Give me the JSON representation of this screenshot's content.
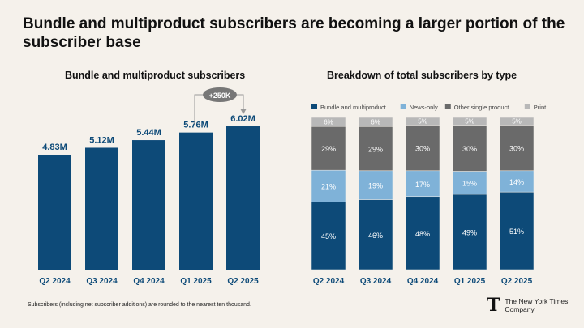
{
  "title": "Bundle and multiproduct subscribers are becoming a larger portion of the subscriber base",
  "footnote": "Subscribers (including net subscriber additions) are rounded to the nearest ten thousand.",
  "logo": {
    "line1": "The New York Times",
    "line2": "Company"
  },
  "chart_data": [
    {
      "type": "bar",
      "title": "Bundle and multiproduct subscribers",
      "categories": [
        "Q2 2024",
        "Q3 2024",
        "Q4 2024",
        "Q1 2025",
        "Q2 2025"
      ],
      "values": [
        4.83,
        5.12,
        5.44,
        5.76,
        6.02
      ],
      "labels": [
        "4.83M",
        "5.12M",
        "5.44M",
        "5.76M",
        "6.02M"
      ],
      "annotation": "+250K",
      "ylim": [
        0,
        6.5
      ],
      "color": "#0d4a78"
    },
    {
      "type": "bar",
      "stacked": true,
      "title": "Breakdown of total subscribers by type",
      "categories": [
        "Q2 2024",
        "Q3 2024",
        "Q4 2024",
        "Q1 2025",
        "Q2 2025"
      ],
      "legend_position": "top",
      "series": [
        {
          "name": "Bundle and multiproduct",
          "values": [
            45,
            46,
            48,
            49,
            51
          ],
          "color": "#0d4a78"
        },
        {
          "name": "News-only",
          "values": [
            21,
            19,
            17,
            15,
            14
          ],
          "color": "#7fb2d8"
        },
        {
          "name": "Other single product",
          "values": [
            29,
            29,
            30,
            30,
            30
          ],
          "color": "#6a6a6a"
        },
        {
          "name": "Print",
          "values": [
            6,
            6,
            5,
            5,
            5
          ],
          "color": "#b8b8b8"
        }
      ],
      "ylim": [
        0,
        100
      ]
    }
  ]
}
